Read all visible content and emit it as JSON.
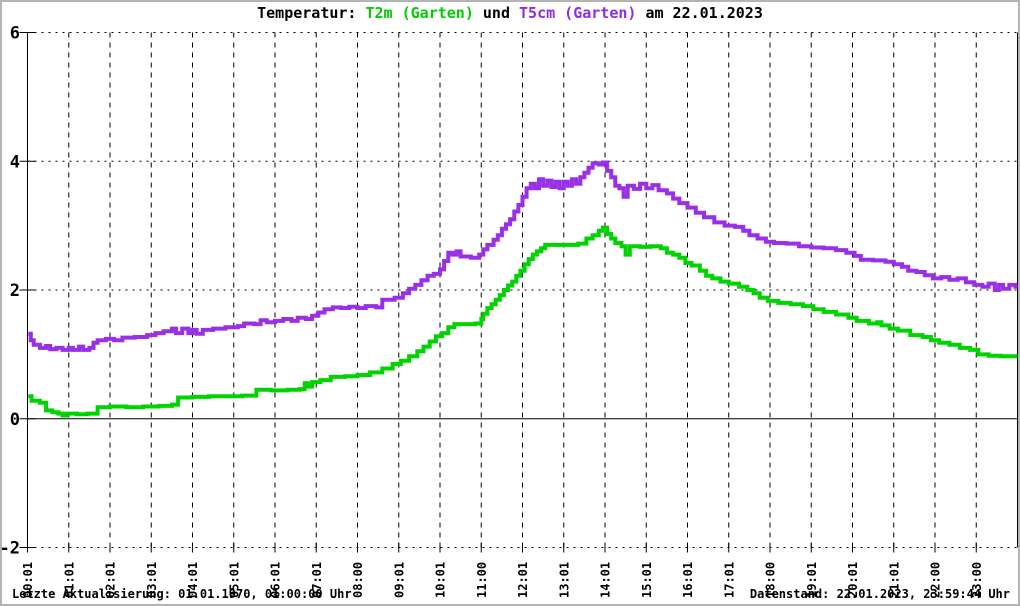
{
  "title": {
    "prefix": "Temperatur: ",
    "series_t2m": "T2m (Garten)",
    "mid": " und ",
    "series_t5cm": "T5cm (Garten)",
    "suffix": " am 22.01.2023"
  },
  "footer": {
    "left": "Letzte Aktualisierung: 01.01.1970, 01:00:00 Uhr",
    "right": "Datenstand: 22.01.2023, 23:59:44 Uhr"
  },
  "colors": {
    "t2m_green": "#00d400",
    "t5cm_purple": "#9a2fe8",
    "axis_black": "#000000",
    "background": "#ffffff"
  },
  "chart_data": {
    "type": "line",
    "title": "Temperatur: T2m (Garten) und T5cm (Garten) am 22.01.2023",
    "xlabel": "",
    "ylabel": "",
    "ylim": [
      -2,
      6
    ],
    "xlim_hours": [
      0,
      24
    ],
    "y_ticks": [
      6,
      4,
      2,
      0,
      -2
    ],
    "x_tick_labels": [
      "00:01",
      "01:01",
      "02:01",
      "03:01",
      "04:01",
      "05:01",
      "06:01",
      "07:01",
      "08:00",
      "09:01",
      "10:01",
      "11:00",
      "12:01",
      "13:01",
      "14:01",
      "15:01",
      "16:01",
      "17:01",
      "18:00",
      "19:01",
      "20:01",
      "21:01",
      "22:00",
      "23:00"
    ],
    "grid": {
      "vertical": "dashed-hourly",
      "horizontal": "dotted-at-even-values",
      "zero_line": "solid"
    },
    "legend_position": "in-title",
    "series": [
      {
        "name": "T5cm (Garten)",
        "color": "#9a2fe8",
        "points": [
          [
            0.02,
            1.32
          ],
          [
            0.08,
            1.22
          ],
          [
            0.15,
            1.15
          ],
          [
            0.3,
            1.1
          ],
          [
            0.45,
            1.13
          ],
          [
            0.55,
            1.08
          ],
          [
            0.7,
            1.1
          ],
          [
            0.85,
            1.07
          ],
          [
            1.0,
            1.1
          ],
          [
            1.1,
            1.07
          ],
          [
            1.25,
            1.12
          ],
          [
            1.35,
            1.07
          ],
          [
            1.5,
            1.1
          ],
          [
            1.6,
            1.18
          ],
          [
            1.7,
            1.22
          ],
          [
            1.9,
            1.24
          ],
          [
            2.1,
            1.22
          ],
          [
            2.3,
            1.26
          ],
          [
            2.6,
            1.27
          ],
          [
            2.9,
            1.3
          ],
          [
            3.1,
            1.33
          ],
          [
            3.3,
            1.36
          ],
          [
            3.5,
            1.4
          ],
          [
            3.6,
            1.33
          ],
          [
            3.75,
            1.4
          ],
          [
            3.9,
            1.33
          ],
          [
            4.0,
            1.38
          ],
          [
            4.1,
            1.32
          ],
          [
            4.25,
            1.38
          ],
          [
            4.5,
            1.4
          ],
          [
            4.8,
            1.42
          ],
          [
            5.1,
            1.44
          ],
          [
            5.25,
            1.48
          ],
          [
            5.5,
            1.47
          ],
          [
            5.65,
            1.53
          ],
          [
            5.8,
            1.5
          ],
          [
            6.0,
            1.52
          ],
          [
            6.2,
            1.55
          ],
          [
            6.4,
            1.52
          ],
          [
            6.55,
            1.57
          ],
          [
            6.75,
            1.55
          ],
          [
            6.9,
            1.6
          ],
          [
            7.05,
            1.65
          ],
          [
            7.2,
            1.7
          ],
          [
            7.4,
            1.73
          ],
          [
            7.6,
            1.72
          ],
          [
            7.8,
            1.74
          ],
          [
            8.0,
            1.72
          ],
          [
            8.2,
            1.75
          ],
          [
            8.45,
            1.73
          ],
          [
            8.6,
            1.85
          ],
          [
            8.9,
            1.88
          ],
          [
            9.1,
            1.95
          ],
          [
            9.25,
            2.02
          ],
          [
            9.4,
            2.08
          ],
          [
            9.55,
            2.15
          ],
          [
            9.7,
            2.22
          ],
          [
            9.85,
            2.25
          ],
          [
            10.0,
            2.32
          ],
          [
            10.1,
            2.45
          ],
          [
            10.2,
            2.58
          ],
          [
            10.3,
            2.55
          ],
          [
            10.4,
            2.6
          ],
          [
            10.5,
            2.52
          ],
          [
            10.75,
            2.5
          ],
          [
            10.95,
            2.55
          ],
          [
            11.05,
            2.63
          ],
          [
            11.15,
            2.7
          ],
          [
            11.3,
            2.78
          ],
          [
            11.4,
            2.85
          ],
          [
            11.5,
            2.95
          ],
          [
            11.6,
            3.02
          ],
          [
            11.7,
            3.1
          ],
          [
            11.8,
            3.22
          ],
          [
            11.9,
            3.32
          ],
          [
            12.0,
            3.45
          ],
          [
            12.1,
            3.58
          ],
          [
            12.2,
            3.65
          ],
          [
            12.3,
            3.58
          ],
          [
            12.4,
            3.72
          ],
          [
            12.5,
            3.62
          ],
          [
            12.6,
            3.7
          ],
          [
            12.7,
            3.6
          ],
          [
            12.8,
            3.68
          ],
          [
            12.9,
            3.58
          ],
          [
            13.0,
            3.68
          ],
          [
            13.1,
            3.62
          ],
          [
            13.2,
            3.72
          ],
          [
            13.3,
            3.65
          ],
          [
            13.4,
            3.75
          ],
          [
            13.5,
            3.82
          ],
          [
            13.6,
            3.9
          ],
          [
            13.7,
            3.97
          ],
          [
            13.85,
            3.95
          ],
          [
            13.95,
            3.98
          ],
          [
            14.05,
            3.85
          ],
          [
            14.15,
            3.75
          ],
          [
            14.25,
            3.62
          ],
          [
            14.35,
            3.58
          ],
          [
            14.45,
            3.45
          ],
          [
            14.55,
            3.62
          ],
          [
            14.7,
            3.57
          ],
          [
            14.85,
            3.65
          ],
          [
            15.0,
            3.58
          ],
          [
            15.15,
            3.63
          ],
          [
            15.3,
            3.55
          ],
          [
            15.5,
            3.5
          ],
          [
            15.65,
            3.42
          ],
          [
            15.8,
            3.35
          ],
          [
            16.0,
            3.28
          ],
          [
            16.2,
            3.2
          ],
          [
            16.4,
            3.13
          ],
          [
            16.65,
            3.05
          ],
          [
            16.9,
            3.0
          ],
          [
            17.15,
            2.98
          ],
          [
            17.35,
            2.92
          ],
          [
            17.5,
            2.85
          ],
          [
            17.7,
            2.8
          ],
          [
            17.9,
            2.75
          ],
          [
            18.1,
            2.73
          ],
          [
            18.4,
            2.72
          ],
          [
            18.7,
            2.68
          ],
          [
            19.0,
            2.66
          ],
          [
            19.3,
            2.65
          ],
          [
            19.6,
            2.62
          ],
          [
            19.85,
            2.58
          ],
          [
            20.05,
            2.53
          ],
          [
            20.2,
            2.47
          ],
          [
            20.5,
            2.46
          ],
          [
            20.8,
            2.44
          ],
          [
            21.0,
            2.4
          ],
          [
            21.2,
            2.36
          ],
          [
            21.35,
            2.3
          ],
          [
            21.55,
            2.28
          ],
          [
            21.75,
            2.23
          ],
          [
            21.95,
            2.18
          ],
          [
            22.15,
            2.2
          ],
          [
            22.35,
            2.16
          ],
          [
            22.55,
            2.18
          ],
          [
            22.75,
            2.12
          ],
          [
            22.95,
            2.08
          ],
          [
            23.15,
            2.05
          ],
          [
            23.3,
            2.1
          ],
          [
            23.45,
            2.0
          ],
          [
            23.55,
            2.08
          ],
          [
            23.65,
            2.02
          ],
          [
            23.8,
            2.08
          ],
          [
            23.95,
            2.05
          ]
        ]
      },
      {
        "name": "T2m (Garten)",
        "color": "#00d400",
        "points": [
          [
            0.02,
            0.35
          ],
          [
            0.1,
            0.28
          ],
          [
            0.3,
            0.25
          ],
          [
            0.45,
            0.13
          ],
          [
            0.6,
            0.1
          ],
          [
            0.75,
            0.08
          ],
          [
            0.85,
            0.05
          ],
          [
            0.95,
            0.08
          ],
          [
            1.2,
            0.07
          ],
          [
            1.45,
            0.08
          ],
          [
            1.7,
            0.18
          ],
          [
            2.0,
            0.19
          ],
          [
            2.4,
            0.18
          ],
          [
            2.8,
            0.19
          ],
          [
            3.2,
            0.2
          ],
          [
            3.5,
            0.22
          ],
          [
            3.65,
            0.33
          ],
          [
            4.0,
            0.34
          ],
          [
            4.4,
            0.35
          ],
          [
            4.9,
            0.35
          ],
          [
            5.2,
            0.36
          ],
          [
            5.55,
            0.45
          ],
          [
            5.9,
            0.44
          ],
          [
            6.3,
            0.45
          ],
          [
            6.6,
            0.46
          ],
          [
            6.72,
            0.55
          ],
          [
            6.8,
            0.5
          ],
          [
            6.9,
            0.57
          ],
          [
            7.1,
            0.6
          ],
          [
            7.35,
            0.65
          ],
          [
            7.7,
            0.66
          ],
          [
            8.0,
            0.68
          ],
          [
            8.3,
            0.72
          ],
          [
            8.6,
            0.78
          ],
          [
            8.85,
            0.85
          ],
          [
            9.05,
            0.9
          ],
          [
            9.25,
            0.97
          ],
          [
            9.45,
            1.05
          ],
          [
            9.6,
            1.12
          ],
          [
            9.75,
            1.2
          ],
          [
            9.9,
            1.28
          ],
          [
            10.05,
            1.33
          ],
          [
            10.2,
            1.42
          ],
          [
            10.35,
            1.47
          ],
          [
            10.6,
            1.47
          ],
          [
            10.85,
            1.48
          ],
          [
            11.0,
            1.55
          ],
          [
            11.05,
            1.63
          ],
          [
            11.15,
            1.72
          ],
          [
            11.25,
            1.78
          ],
          [
            11.35,
            1.85
          ],
          [
            11.45,
            1.92
          ],
          [
            11.55,
            2.0
          ],
          [
            11.65,
            2.07
          ],
          [
            11.75,
            2.13
          ],
          [
            11.85,
            2.22
          ],
          [
            11.95,
            2.3
          ],
          [
            12.05,
            2.4
          ],
          [
            12.15,
            2.48
          ],
          [
            12.25,
            2.55
          ],
          [
            12.35,
            2.6
          ],
          [
            12.45,
            2.65
          ],
          [
            12.55,
            2.7
          ],
          [
            12.8,
            2.7
          ],
          [
            13.1,
            2.7
          ],
          [
            13.35,
            2.72
          ],
          [
            13.55,
            2.8
          ],
          [
            13.7,
            2.85
          ],
          [
            13.85,
            2.92
          ],
          [
            13.95,
            2.97
          ],
          [
            14.05,
            2.87
          ],
          [
            14.15,
            2.8
          ],
          [
            14.25,
            2.73
          ],
          [
            14.4,
            2.68
          ],
          [
            14.5,
            2.55
          ],
          [
            14.6,
            2.68
          ],
          [
            14.85,
            2.67
          ],
          [
            15.1,
            2.68
          ],
          [
            15.35,
            2.65
          ],
          [
            15.5,
            2.58
          ],
          [
            15.65,
            2.55
          ],
          [
            15.8,
            2.5
          ],
          [
            15.95,
            2.42
          ],
          [
            16.1,
            2.38
          ],
          [
            16.3,
            2.3
          ],
          [
            16.45,
            2.22
          ],
          [
            16.6,
            2.18
          ],
          [
            16.8,
            2.13
          ],
          [
            17.0,
            2.1
          ],
          [
            17.25,
            2.05
          ],
          [
            17.45,
            2.0
          ],
          [
            17.6,
            1.95
          ],
          [
            17.75,
            1.88
          ],
          [
            17.95,
            1.83
          ],
          [
            18.2,
            1.8
          ],
          [
            18.5,
            1.78
          ],
          [
            18.8,
            1.75
          ],
          [
            19.05,
            1.7
          ],
          [
            19.3,
            1.66
          ],
          [
            19.6,
            1.62
          ],
          [
            19.9,
            1.57
          ],
          [
            20.1,
            1.52
          ],
          [
            20.4,
            1.48
          ],
          [
            20.6,
            1.5
          ],
          [
            20.7,
            1.45
          ],
          [
            20.9,
            1.4
          ],
          [
            21.1,
            1.37
          ],
          [
            21.4,
            1.3
          ],
          [
            21.7,
            1.27
          ],
          [
            21.9,
            1.22
          ],
          [
            22.1,
            1.18
          ],
          [
            22.35,
            1.15
          ],
          [
            22.6,
            1.1
          ],
          [
            22.85,
            1.07
          ],
          [
            23.05,
            1.0
          ],
          [
            23.3,
            0.98
          ],
          [
            23.6,
            0.97
          ],
          [
            23.95,
            0.97
          ]
        ]
      }
    ]
  }
}
